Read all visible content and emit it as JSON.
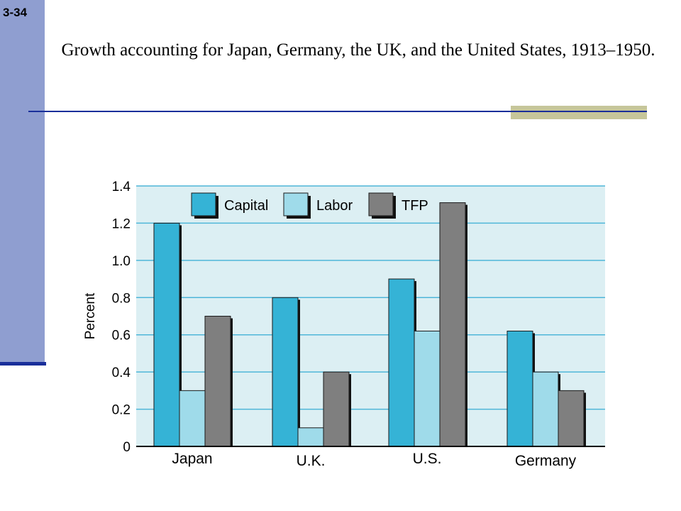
{
  "slide": {
    "number": "3-34",
    "title": "Growth accounting for Japan, Germany, the UK, and the United States, 1913–1950."
  },
  "colors": {
    "sidebar": "#8f9ed0",
    "accent_line": "#1a2f9a",
    "accent_block": "#c6c69a",
    "plot_background": "#dceff3",
    "grid": "#4fb6d8"
  },
  "chart_data": {
    "type": "bar",
    "title": "",
    "xlabel": "",
    "ylabel": "Percent",
    "ylim": [
      0,
      1.4
    ],
    "yticks": [
      "0",
      "0.2",
      "0.4",
      "0.6",
      "0.8",
      "1.0",
      "1.2",
      "1.4"
    ],
    "categories": [
      "Japan",
      "U.K.",
      "U.S.",
      "Germany"
    ],
    "series": [
      {
        "name": "Capital",
        "color": "#35b3d6",
        "values": [
          1.2,
          0.8,
          0.9,
          0.62
        ]
      },
      {
        "name": "Labor",
        "color": "#9fdbea",
        "values": [
          0.3,
          0.1,
          0.62,
          0.4
        ]
      },
      {
        "name": "TFP",
        "color": "#7f7f7f",
        "values": [
          0.7,
          0.4,
          1.31,
          0.3
        ]
      }
    ],
    "grid": true,
    "legend_position": "top-left"
  }
}
